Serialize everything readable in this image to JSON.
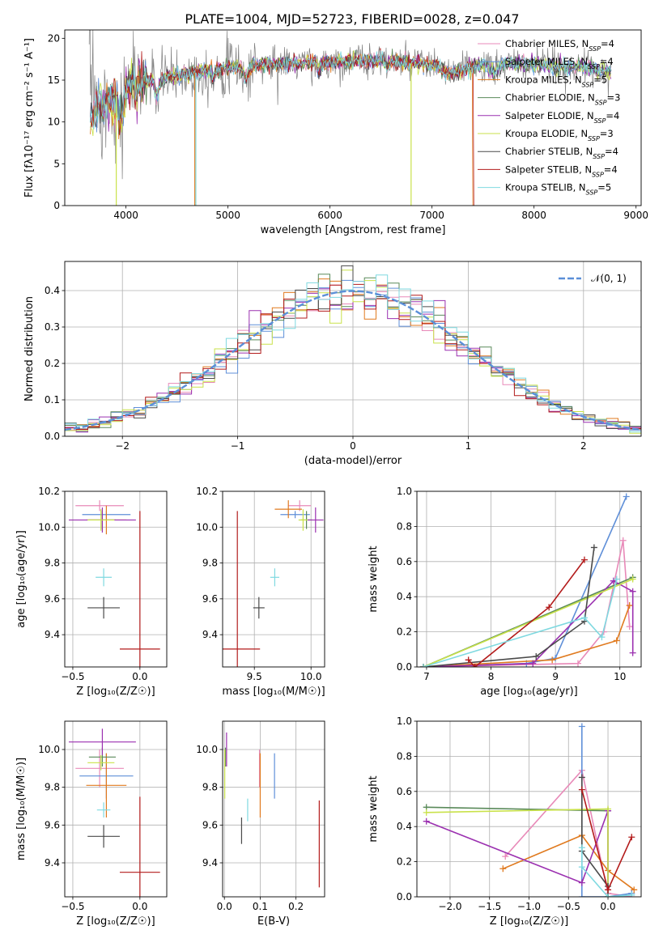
{
  "figure": {
    "title": "PLATE=1004, MJD=52723, FIBERID=0028, z=0.047"
  },
  "colors": {
    "Chabrier MILES": "#e889b8",
    "Salpeter MILES": "#5f8fd8",
    "Kroupa MILES": "#e07a1f",
    "Chabrier ELODIE": "#5a8a5a",
    "Salpeter ELODIE": "#9b30b0",
    "Kroupa ELODIE": "#c9e24a",
    "Chabrier STELIB": "#4a4a4a",
    "Salpeter STELIB": "#b31b1b",
    "Kroupa STELIB": "#7fd9e0",
    "data": "#808080",
    "gaussian": "#5b8fd8"
  },
  "chart_data": [
    {
      "id": "spectrum",
      "type": "line",
      "xlabel": "wavelength [Angstrom, rest frame]",
      "ylabel": "Flux [fλ10⁻¹⁷ erg cm⁻² s⁻¹ A⁻¹]",
      "xlim": [
        3400,
        9050
      ],
      "ylim": [
        0,
        21
      ],
      "xticks": [
        4000,
        5000,
        6000,
        7000,
        8000,
        9000
      ],
      "yticks": [
        0,
        5,
        10,
        15,
        20
      ],
      "grid": false,
      "legend_position": "top-right",
      "legend": [
        {
          "label": "Chabrier MILES, N",
          "sub": "SSP",
          "tail": "=4"
        },
        {
          "label": "Salpeter MILES, N",
          "sub": "SSP",
          "tail": "=4"
        },
        {
          "label": "Kroupa MILES, N",
          "sub": "SSP",
          "tail": "=5"
        },
        {
          "label": "Chabrier ELODIE, N",
          "sub": "SSP",
          "tail": "=3"
        },
        {
          "label": "Salpeter ELODIE, N",
          "sub": "SSP",
          "tail": "=4"
        },
        {
          "label": "Kroupa ELODIE, N",
          "sub": "SSP",
          "tail": "=3"
        },
        {
          "label": "Chabrier STELIB, N",
          "sub": "SSP",
          "tail": "=4"
        },
        {
          "label": "Salpeter STELIB, N",
          "sub": "SSP",
          "tail": "=4"
        },
        {
          "label": "Kroupa STELIB, N",
          "sub": "SSP",
          "tail": "=5"
        }
      ],
      "continuum": [
        [
          3650,
          10.5
        ],
        [
          3750,
          12.0
        ],
        [
          3850,
          12.5
        ],
        [
          3950,
          13.5
        ],
        [
          4050,
          14.5
        ],
        [
          4200,
          15.0
        ],
        [
          4500,
          15.5
        ],
        [
          5000,
          16.5
        ],
        [
          5500,
          17.0
        ],
        [
          6000,
          17.2
        ],
        [
          6500,
          17.4
        ],
        [
          6800,
          17.0
        ],
        [
          7000,
          16.8
        ],
        [
          7200,
          15.8
        ],
        [
          7400,
          16.6
        ],
        [
          7600,
          17.0
        ],
        [
          8000,
          16.8
        ],
        [
          8400,
          16.6
        ],
        [
          8750,
          16.0
        ]
      ],
      "spikes": [
        {
          "model": "Kroupa ELODIE",
          "x": 3905,
          "y": 0
        },
        {
          "model": "Kroupa MILES",
          "x": 4675,
          "y": 0
        },
        {
          "model": "Kroupa STELIB",
          "x": 4685,
          "y": 0
        },
        {
          "model": "Kroupa ELODIE",
          "x": 6795,
          "y": 0
        }
      ],
      "model_end": [
        {
          "model": "Kroupa MILES",
          "x": 7400
        },
        {
          "model": "Salpeter STELIB",
          "x": 7410
        }
      ]
    },
    {
      "id": "residuals",
      "type": "histogram",
      "xlabel": "(data-model)/error",
      "ylabel": "Normed distribution",
      "xlim": [
        -2.5,
        2.5
      ],
      "ylim": [
        0,
        0.48
      ],
      "xticks": [
        -2,
        -1,
        0,
        1,
        2
      ],
      "yticks": [
        0.0,
        0.1,
        0.2,
        0.3,
        0.4
      ],
      "grid": true,
      "legend_position": "top-right",
      "legend": [
        {
          "label": "𝒩(0, 1)"
        }
      ],
      "bin_width": 0.1,
      "bin_start": -2.5
    },
    {
      "id": "age-vs-Z",
      "type": "errorbar",
      "xlabel": "Z [log₁₀(Z/Z☉)]",
      "ylabel": "age  [log₁₀(age/yr)]",
      "xlim": [
        -0.56,
        0.2
      ],
      "ylim": [
        9.22,
        10.2
      ],
      "xticks": [
        -0.5,
        0.0
      ],
      "yticks": [
        9.4,
        9.6,
        9.8,
        10.0,
        10.2
      ],
      "grid": true,
      "points": [
        {
          "model": "Chabrier MILES",
          "x": -0.3,
          "xerr": 0.18,
          "y": 10.12,
          "yerr": 0.03
        },
        {
          "model": "Salpeter MILES",
          "x": -0.25,
          "xerr": 0.18,
          "y": 10.07,
          "yerr": 0.02
        },
        {
          "model": "Kroupa MILES",
          "x": -0.25,
          "xerr": 0.15,
          "y": 10.04,
          "yerr": 0.08
        },
        {
          "model": "Chabrier ELODIE",
          "x": -0.28,
          "xerr": 0.1,
          "y": 10.04,
          "yerr": 0.05
        },
        {
          "model": "Salpeter ELODIE",
          "x": -0.28,
          "xerr": 0.25,
          "y": 10.04,
          "yerr": 0.07
        },
        {
          "model": "Kroupa ELODIE",
          "x": -0.29,
          "xerr": 0.1,
          "y": 10.04,
          "yerr": 0.06
        },
        {
          "model": "Chabrier STELIB",
          "x": -0.27,
          "xerr": 0.12,
          "y": 9.55,
          "yerr": 0.06
        },
        {
          "model": "Salpeter STELIB",
          "x": 0.0,
          "xerr": 0.15,
          "y": 9.32,
          "yerr": 0.77
        },
        {
          "model": "Kroupa STELIB",
          "x": -0.27,
          "xerr": 0.06,
          "y": 9.72,
          "yerr": 0.05
        }
      ]
    },
    {
      "id": "age-vs-mass",
      "type": "errorbar",
      "xlabel": "mass [log₁₀(M/M☉)]",
      "ylabel": "",
      "xlim": [
        9.22,
        10.12
      ],
      "ylim": [
        9.22,
        10.2
      ],
      "xticks": [
        9.5,
        10.0
      ],
      "yticks": [
        9.4,
        9.6,
        9.8,
        10.0,
        10.2
      ],
      "grid": true,
      "points": [
        {
          "model": "Chabrier MILES",
          "x": 9.9,
          "xerr": 0.1,
          "y": 10.12,
          "yerr": 0.03
        },
        {
          "model": "Salpeter MILES",
          "x": 9.86,
          "xerr": 0.13,
          "y": 10.07,
          "yerr": 0.02
        },
        {
          "model": "Kroupa MILES",
          "x": 9.8,
          "xerr": 0.12,
          "y": 10.1,
          "yerr": 0.05
        },
        {
          "model": "Chabrier ELODIE",
          "x": 9.96,
          "xerr": 0.05,
          "y": 10.04,
          "yerr": 0.05
        },
        {
          "model": "Salpeter ELODIE",
          "x": 10.04,
          "xerr": 0.07,
          "y": 10.04,
          "yerr": 0.07
        },
        {
          "model": "Kroupa ELODIE",
          "x": 9.93,
          "xerr": 0.04,
          "y": 10.04,
          "yerr": 0.06
        },
        {
          "model": "Chabrier STELIB",
          "x": 9.54,
          "xerr": 0.05,
          "y": 9.55,
          "yerr": 0.06
        },
        {
          "model": "Salpeter STELIB",
          "x": 9.35,
          "xerr": 0.2,
          "y": 9.32,
          "yerr": 0.77
        },
        {
          "model": "Kroupa STELIB",
          "x": 9.68,
          "xerr": 0.04,
          "y": 9.72,
          "yerr": 0.05
        }
      ]
    },
    {
      "id": "weight-vs-age",
      "type": "line",
      "xlabel": "age  [log₁₀(age/yr)]",
      "ylabel": "mass weight",
      "xlim": [
        6.85,
        10.33
      ],
      "ylim": [
        0,
        1.0
      ],
      "xticks": [
        7,
        8,
        9,
        10
      ],
      "yticks": [
        0.0,
        0.2,
        0.4,
        0.6,
        0.8,
        1.0
      ],
      "grid": true,
      "series": [
        {
          "model": "Chabrier MILES",
          "x": [
            6.95,
            9.35,
            9.75,
            10.05,
            10.15
          ],
          "y": [
            0.0,
            0.02,
            0.2,
            0.72,
            0.23
          ]
        },
        {
          "model": "Salpeter MILES",
          "x": [
            6.95,
            8.55,
            9.0,
            10.1
          ],
          "y": [
            0.0,
            0.02,
            0.05,
            0.97
          ]
        },
        {
          "model": "Kroupa MILES",
          "x": [
            6.95,
            8.95,
            9.95,
            10.15
          ],
          "y": [
            0.0,
            0.04,
            0.15,
            0.35
          ]
        },
        {
          "model": "Chabrier ELODIE",
          "x": [
            6.95,
            10.2
          ],
          "y": [
            0.0,
            0.51
          ]
        },
        {
          "model": "Salpeter ELODIE",
          "x": [
            6.95,
            8.65,
            9.9,
            10.2,
            10.2
          ],
          "y": [
            0.0,
            0.02,
            0.49,
            0.43,
            0.08
          ]
        },
        {
          "model": "Kroupa ELODIE",
          "x": [
            6.95,
            10.2
          ],
          "y": [
            0.0,
            0.5
          ]
        },
        {
          "model": "Chabrier STELIB",
          "x": [
            6.95,
            8.7,
            9.45,
            9.6
          ],
          "y": [
            0.0,
            0.06,
            0.26,
            0.68
          ]
        },
        {
          "model": "Salpeter STELIB",
          "x": [
            7.65,
            7.75,
            8.9,
            9.45
          ],
          "y": [
            0.04,
            0.0,
            0.34,
            0.61
          ]
        },
        {
          "model": "Kroupa STELIB",
          "x": [
            6.95,
            9.45,
            9.72,
            9.95
          ],
          "y": [
            0.0,
            0.28,
            0.17,
            0.5
          ]
        }
      ]
    },
    {
      "id": "mass-vs-Z",
      "type": "errorbar",
      "xlabel": "Z [log₁₀(Z/Z☉)]",
      "ylabel": "mass [log₁₀(M/M☉)]",
      "xlim": [
        -0.56,
        0.2
      ],
      "ylim": [
        9.22,
        10.15
      ],
      "xticks": [
        -0.5,
        0.0
      ],
      "yticks": [
        9.4,
        9.6,
        9.8,
        10.0
      ],
      "grid": true,
      "points": [
        {
          "model": "Chabrier MILES",
          "x": -0.3,
          "xerr": 0.18,
          "y": 9.9,
          "yerr": 0.1
        },
        {
          "model": "Salpeter MILES",
          "x": -0.25,
          "xerr": 0.2,
          "y": 9.86,
          "yerr": 0.12
        },
        {
          "model": "Kroupa MILES",
          "x": -0.25,
          "xerr": 0.15,
          "y": 9.81,
          "yerr": 0.17
        },
        {
          "model": "Chabrier ELODIE",
          "x": -0.28,
          "xerr": 0.1,
          "y": 9.96,
          "yerr": 0.05
        },
        {
          "model": "Salpeter ELODIE",
          "x": -0.28,
          "xerr": 0.25,
          "y": 10.04,
          "yerr": 0.07
        },
        {
          "model": "Kroupa ELODIE",
          "x": -0.29,
          "xerr": 0.1,
          "y": 9.93,
          "yerr": 0.04
        },
        {
          "model": "Chabrier STELIB",
          "x": -0.27,
          "xerr": 0.12,
          "y": 9.54,
          "yerr": 0.06
        },
        {
          "model": "Salpeter STELIB",
          "x": 0.0,
          "xerr": 0.15,
          "y": 9.35,
          "yerr": 0.4
        },
        {
          "model": "Kroupa STELIB",
          "x": -0.27,
          "xerr": 0.05,
          "y": 9.68,
          "yerr": 0.04
        }
      ]
    },
    {
      "id": "mass-vs-EBV",
      "type": "errorbar",
      "xlabel": "E(B-V)",
      "ylabel": "",
      "xlim": [
        -0.005,
        0.28
      ],
      "ylim": [
        9.22,
        10.15
      ],
      "xticks": [
        0.0,
        0.1,
        0.2
      ],
      "yticks": [
        9.4,
        9.6,
        9.8,
        10.0
      ],
      "grid": true,
      "points": [
        {
          "model": "Chabrier MILES",
          "x": 0.098,
          "y": 9.9,
          "yerr": 0.1
        },
        {
          "model": "Salpeter MILES",
          "x": 0.14,
          "y": 9.86,
          "yerr": 0.12
        },
        {
          "model": "Kroupa MILES",
          "x": 0.1,
          "y": 9.81,
          "yerr": 0.17
        },
        {
          "model": "Chabrier ELODIE",
          "x": 0.003,
          "y": 9.96,
          "yerr": 0.05
        },
        {
          "model": "Salpeter ELODIE",
          "x": 0.006,
          "y": 10.0,
          "yerr": 0.09
        },
        {
          "model": "Kroupa ELODIE",
          "x": 0.001,
          "y": 9.87,
          "yerr": 0.13
        },
        {
          "model": "Chabrier STELIB",
          "x": 0.048,
          "y": 9.57,
          "yerr": 0.07
        },
        {
          "model": "Salpeter STELIB",
          "x": 0.265,
          "y": 9.5,
          "yerr": 0.23
        },
        {
          "model": "Kroupa STELIB",
          "x": 0.065,
          "y": 9.68,
          "yerr": 0.06
        }
      ]
    },
    {
      "id": "weight-vs-Z",
      "type": "line",
      "xlabel": "Z [log₁₀(Z/Z☉)]",
      "ylabel": "mass weight",
      "xlim": [
        -2.42,
        0.42
      ],
      "ylim": [
        0,
        1.0
      ],
      "xticks": [
        -2.0,
        -1.5,
        -1.0,
        -0.5,
        0.0
      ],
      "yticks": [
        0.0,
        0.2,
        0.4,
        0.6,
        0.8,
        1.0
      ],
      "grid": true,
      "series": [
        {
          "model": "Chabrier MILES",
          "x": [
            -1.3,
            -0.33,
            0.0,
            0.3
          ],
          "y": [
            0.23,
            0.72,
            0.02,
            0.0
          ]
        },
        {
          "model": "Salpeter MILES",
          "x": [
            -0.33,
            -0.33,
            0.0,
            0.3
          ],
          "y": [
            0.97,
            0.0,
            0.0,
            0.02
          ]
        },
        {
          "model": "Kroupa MILES",
          "x": [
            -1.33,
            -0.33,
            0.0,
            0.33
          ],
          "y": [
            0.16,
            0.35,
            0.15,
            0.04
          ]
        },
        {
          "model": "Chabrier ELODIE",
          "x": [
            -2.3,
            0.0,
            0.0
          ],
          "y": [
            0.51,
            0.49,
            0.0
          ]
        },
        {
          "model": "Salpeter ELODIE",
          "x": [
            -2.3,
            -0.33,
            0.0,
            0.0
          ],
          "y": [
            0.43,
            0.08,
            0.49,
            0.0
          ]
        },
        {
          "model": "Kroupa ELODIE",
          "x": [
            -2.3,
            0.0,
            0.0
          ],
          "y": [
            0.48,
            0.5,
            0.0
          ]
        },
        {
          "model": "Chabrier STELIB",
          "x": [
            -0.33,
            -0.33,
            0.0,
            0.0
          ],
          "y": [
            0.68,
            0.26,
            0.06,
            0.0
          ]
        },
        {
          "model": "Salpeter STELIB",
          "x": [
            -0.33,
            0.0,
            0.3
          ],
          "y": [
            0.61,
            0.04,
            0.34
          ]
        },
        {
          "model": "Kroupa STELIB",
          "x": [
            -0.33,
            -0.33,
            0.0,
            0.3
          ],
          "y": [
            0.28,
            0.17,
            0.0,
            0.01
          ]
        }
      ]
    }
  ]
}
